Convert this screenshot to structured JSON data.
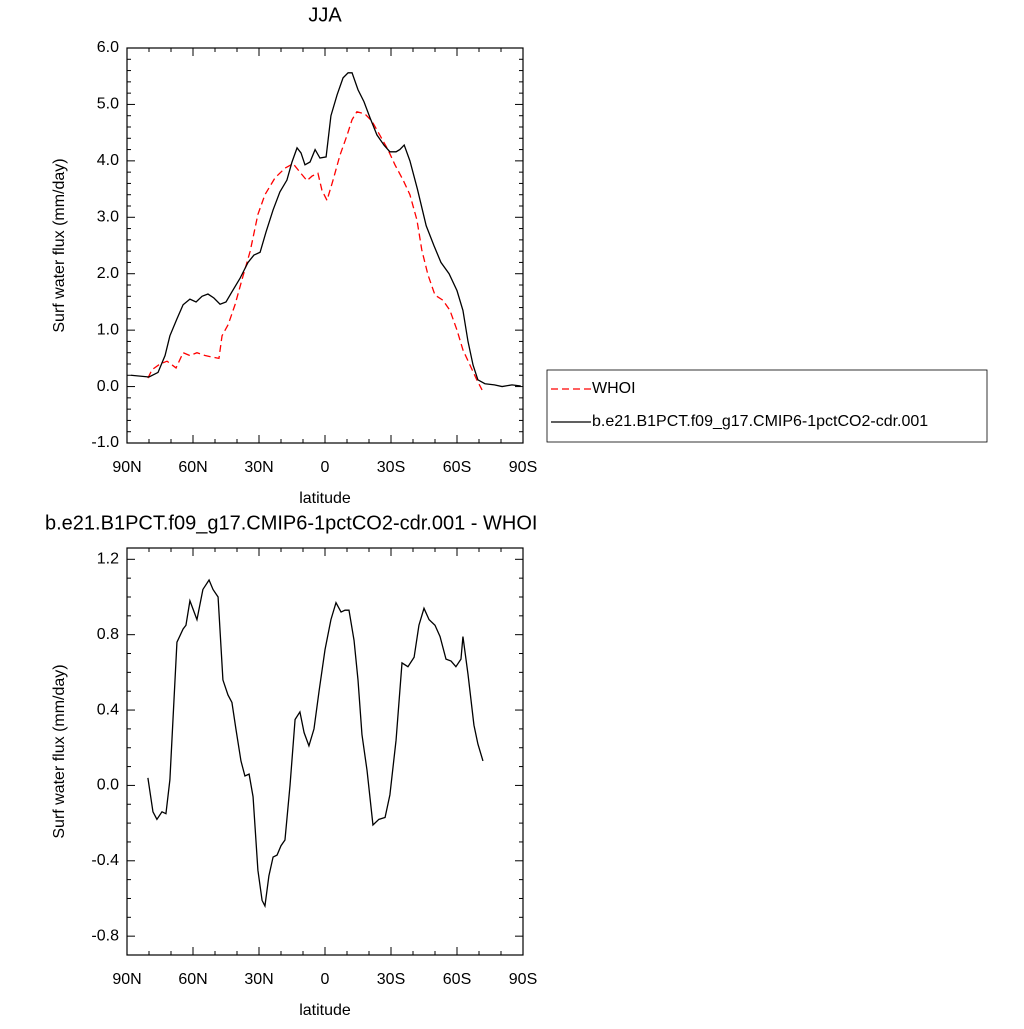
{
  "chart_data": [
    {
      "type": "line",
      "title": "JJA",
      "y_label": "Surf water flux (mm/day)",
      "x_label": "latitude",
      "xlim": [
        90,
        -90
      ],
      "xticks": [
        {
          "value": 90,
          "label": "90N"
        },
        {
          "value": 60,
          "label": "60N"
        },
        {
          "value": 30,
          "label": "30N"
        },
        0,
        {
          "value": -30,
          "label": "30S"
        },
        {
          "value": -60,
          "label": "60S"
        },
        {
          "value": -90,
          "label": "90S"
        }
      ],
      "ylim": [
        -1,
        6
      ],
      "yticks": [
        {
          "value": -1,
          "label": "-1.0"
        },
        {
          "value": 0,
          "label": "0.0"
        },
        {
          "value": 1,
          "label": "1.0"
        },
        {
          "value": 2,
          "label": "2.0"
        },
        {
          "value": 3,
          "label": "3.0"
        },
        {
          "value": 4,
          "label": "4.0"
        },
        {
          "value": 5,
          "label": "5.0"
        },
        {
          "value": 6,
          "label": "6.0"
        }
      ],
      "legend": "right",
      "series": [
        {
          "name": "WHOI",
          "color": "#ff0000",
          "line_style": "dashed",
          "x": [
            80.5,
            78.6,
            75,
            71.8,
            67.7,
            64.5,
            61.4,
            58.2,
            54.5,
            50.9,
            48.2,
            46.8,
            44,
            40.9,
            37.7,
            34,
            30.5,
            27.3,
            22.7,
            18.2,
            14.5,
            11.4,
            8.2,
            5.9,
            3.2,
            1.4,
            -0.9,
            -3.6,
            -6.8,
            -10,
            -12.3,
            -14.5,
            -18.2,
            -21.4,
            -25,
            -28.6,
            -31.8,
            -35.5,
            -38.6,
            -41.8,
            -44,
            -46.8,
            -50,
            -53.6,
            -56.8,
            -60,
            -62.7,
            -65.9,
            -69,
            -71.4
          ],
          "values": [
            0.15,
            0.3,
            0.4,
            0.45,
            0.33,
            0.6,
            0.55,
            0.6,
            0.55,
            0.52,
            0.5,
            0.9,
            1.1,
            1.45,
            1.9,
            2.4,
            3.05,
            3.4,
            3.7,
            3.87,
            3.95,
            3.8,
            3.65,
            3.73,
            3.78,
            3.48,
            3.3,
            3.65,
            4.1,
            4.45,
            4.73,
            4.87,
            4.83,
            4.7,
            4.45,
            4.2,
            3.93,
            3.66,
            3.4,
            2.95,
            2.42,
            1.98,
            1.62,
            1.53,
            1.35,
            1.0,
            0.65,
            0.38,
            0.12,
            -0.06
          ]
        },
        {
          "name": "b.e21.B1PCT.f09_g17.CMIP6-1pctCO2-cdr.001",
          "color": "#000000",
          "line_style": "solid",
          "x": [
            88.2,
            80,
            75.9,
            72.7,
            70.5,
            67.3,
            64.5,
            61.4,
            58.6,
            55.9,
            53.2,
            50.5,
            47.7,
            45,
            42.3,
            38.6,
            35,
            32.3,
            29.5,
            26.8,
            23.6,
            20.5,
            17.3,
            15,
            12.7,
            10.9,
            9.1,
            6.8,
            4.5,
            2.3,
            -0.5,
            -2.7,
            -5.5,
            -8.2,
            -10.5,
            -12.3,
            -15,
            -17.7,
            -20.5,
            -23.6,
            -26.8,
            -29.5,
            -32.3,
            -34,
            -36,
            -38.6,
            -42,
            -46,
            -49.5,
            -52.7,
            -56.4,
            -60,
            -62.7,
            -65,
            -67.3,
            -69.5,
            -72.7,
            -77,
            -80.5,
            -85,
            -89
          ],
          "values": [
            0.2,
            0.17,
            0.25,
            0.55,
            0.9,
            1.2,
            1.45,
            1.55,
            1.5,
            1.6,
            1.64,
            1.57,
            1.46,
            1.5,
            1.68,
            1.92,
            2.2,
            2.33,
            2.38,
            2.74,
            3.13,
            3.45,
            3.66,
            3.98,
            4.23,
            4.14,
            3.93,
            3.98,
            4.2,
            4.05,
            4.07,
            4.8,
            5.17,
            5.47,
            5.56,
            5.56,
            5.26,
            5.05,
            4.76,
            4.46,
            4.28,
            4.16,
            4.16,
            4.2,
            4.28,
            4.0,
            3.5,
            2.85,
            2.5,
            2.2,
            2.0,
            1.7,
            1.35,
            0.8,
            0.38,
            0.12,
            0.05,
            0.03,
            0.0,
            0.03,
            0.01
          ]
        }
      ]
    },
    {
      "type": "line",
      "title": "b.e21.B1PCT.f09_g17.CMIP6-1pctCO2-cdr.001 - WHOI",
      "y_label": "Surf water flux (mm/day)",
      "x_label": "latitude",
      "xlim": [
        90,
        -90
      ],
      "xticks": [
        {
          "value": 90,
          "label": "90N"
        },
        {
          "value": 60,
          "label": "60N"
        },
        {
          "value": 30,
          "label": "30N"
        },
        0,
        {
          "value": -30,
          "label": "30S"
        },
        {
          "value": -60,
          "label": "60S"
        },
        {
          "value": -90,
          "label": "90S"
        }
      ],
      "ylim": [
        -0.9,
        1.26
      ],
      "yticks": [
        -0.8,
        -0.4,
        {
          "value": 0,
          "label": "0.0"
        },
        0.4,
        0.8,
        1.2
      ],
      "series": [
        {
          "color": "#000000",
          "line_style": "solid",
          "x": [
            80.5,
            78.2,
            76.4,
            74.1,
            72.3,
            70.5,
            67.3,
            64.5,
            63.2,
            61.4,
            58.2,
            55.5,
            52.7,
            50.9,
            48.6,
            46.4,
            44.1,
            42.3,
            40.5,
            38.2,
            36.4,
            34.5,
            32.7,
            30.5,
            28.6,
            27.3,
            25.5,
            23.6,
            21.8,
            20,
            18.2,
            15.9,
            13.6,
            11.4,
            9.5,
            7.3,
            5,
            2.7,
            0,
            -2.7,
            -5,
            -7.3,
            -9.1,
            -10.9,
            -13.2,
            -15,
            -16.8,
            -19.1,
            -21.8,
            -24.5,
            -27.3,
            -29.5,
            -32.3,
            -35,
            -37.7,
            -40.5,
            -42.7,
            -45,
            -47.3,
            -50,
            -52.3,
            -55,
            -57.3,
            -59.5,
            -61.8,
            -62.7,
            -65,
            -67.7,
            -69.5,
            -71.8
          ],
          "values": [
            0.04,
            -0.14,
            -0.18,
            -0.14,
            -0.15,
            0.03,
            0.76,
            0.83,
            0.85,
            0.98,
            0.88,
            1.04,
            1.09,
            1.04,
            1.0,
            0.56,
            0.48,
            0.44,
            0.3,
            0.13,
            0.05,
            0.06,
            -0.06,
            -0.45,
            -0.61,
            -0.64,
            -0.48,
            -0.38,
            -0.37,
            -0.32,
            -0.29,
            0.0,
            0.35,
            0.39,
            0.28,
            0.21,
            0.3,
            0.5,
            0.72,
            0.88,
            0.97,
            0.92,
            0.93,
            0.93,
            0.77,
            0.56,
            0.27,
            0.08,
            -0.21,
            -0.18,
            -0.17,
            -0.05,
            0.24,
            0.65,
            0.63,
            0.68,
            0.85,
            0.94,
            0.88,
            0.85,
            0.79,
            0.67,
            0.66,
            0.63,
            0.67,
            0.79,
            0.59,
            0.32,
            0.22,
            0.13
          ]
        }
      ]
    }
  ]
}
